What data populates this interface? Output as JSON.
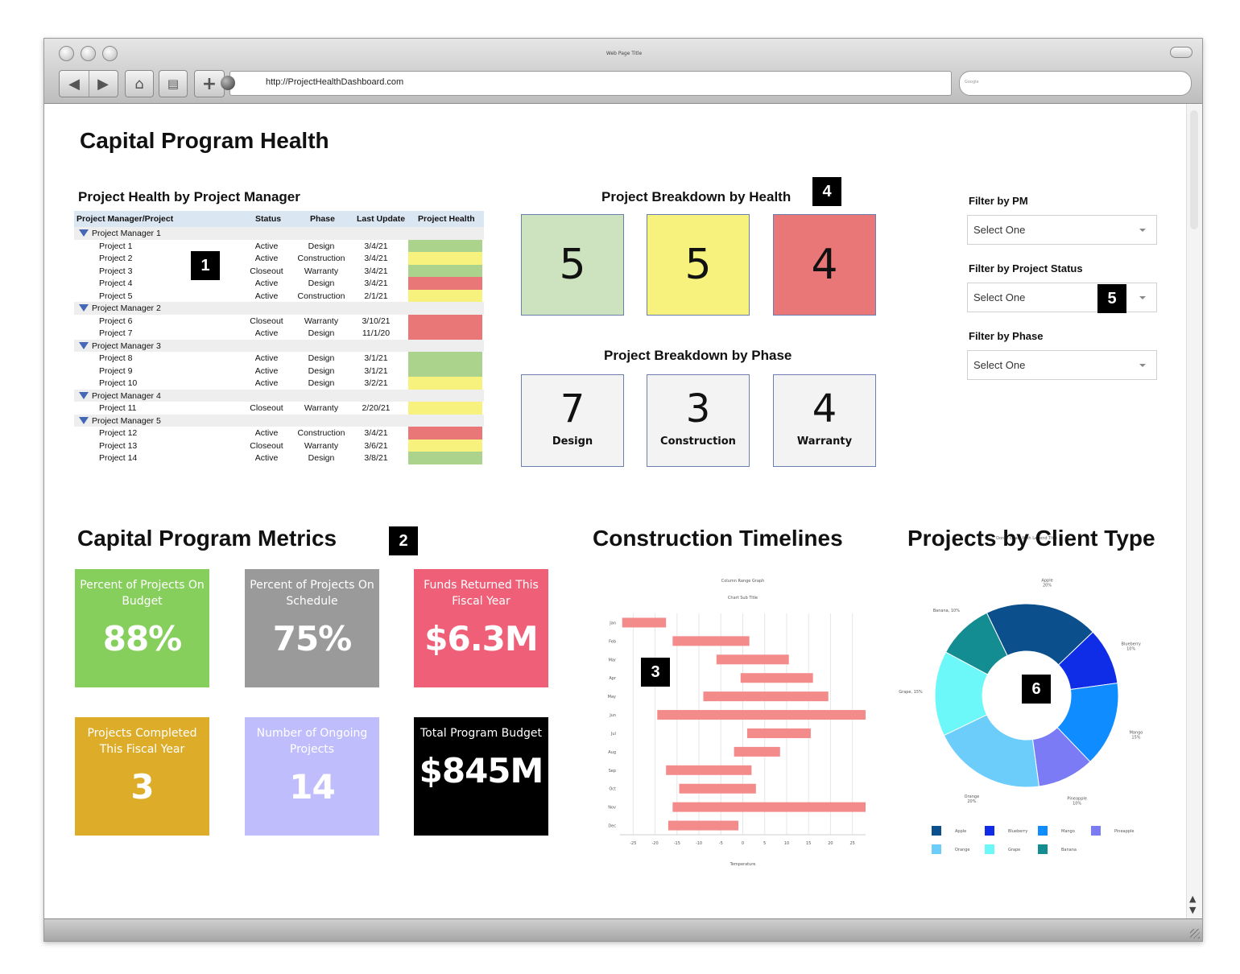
{
  "browser": {
    "window_title": "Web Page Title",
    "url": "http://ProjectHealthDashboard.com",
    "search_placeholder": "Google"
  },
  "page": {
    "title": "Capital Program Health"
  },
  "project_table": {
    "section_title": "Project Health by Project Manager",
    "badge": "1",
    "columns": [
      "Project Manager/Project",
      "Status",
      "Phase",
      "Last Update",
      "Project Health"
    ],
    "health_colors": {
      "green": "#acd38c",
      "yellow": "#f7f27d",
      "red": "#e97777"
    },
    "groups": [
      {
        "manager": "Project Manager 1",
        "projects": [
          {
            "name": "Project 1",
            "status": "Active",
            "phase": "Design",
            "updated": "3/4/21",
            "health": "green"
          },
          {
            "name": "Project 2",
            "status": "Active",
            "phase": "Construction",
            "updated": "3/4/21",
            "health": "yellow"
          },
          {
            "name": "Project 3",
            "status": "Closeout",
            "phase": "Warranty",
            "updated": "3/4/21",
            "health": "green"
          },
          {
            "name": "Project 4",
            "status": "Active",
            "phase": "Design",
            "updated": "3/4/21",
            "health": "red"
          },
          {
            "name": "Project 5",
            "status": "Active",
            "phase": "Construction",
            "updated": "2/1/21",
            "health": "yellow"
          }
        ]
      },
      {
        "manager": "Project Manager 2",
        "projects": [
          {
            "name": "Project 6",
            "status": "Closeout",
            "phase": "Warranty",
            "updated": "3/10/21",
            "health": "red"
          },
          {
            "name": "Project 7",
            "status": "Active",
            "phase": "Design",
            "updated": "11/1/20",
            "health": "red"
          }
        ]
      },
      {
        "manager": "Project Manager 3",
        "projects": [
          {
            "name": "Project 8",
            "status": "Active",
            "phase": "Design",
            "updated": "3/1/21",
            "health": "green"
          },
          {
            "name": "Project 9",
            "status": "Active",
            "phase": "Design",
            "updated": "3/1/21",
            "health": "green"
          },
          {
            "name": "Project 10",
            "status": "Active",
            "phase": "Design",
            "updated": "3/2/21",
            "health": "yellow"
          }
        ]
      },
      {
        "manager": "Project Manager 4",
        "projects": [
          {
            "name": "Project 11",
            "status": "Closeout",
            "phase": "Warranty",
            "updated": "2/20/21",
            "health": "yellow"
          }
        ]
      },
      {
        "manager": "Project Manager 5",
        "projects": [
          {
            "name": "Project 12",
            "status": "Active",
            "phase": "Construction",
            "updated": "3/4/21",
            "health": "red"
          },
          {
            "name": "Project 13",
            "status": "Closeout",
            "phase": "Warranty",
            "updated": "3/6/21",
            "health": "yellow"
          },
          {
            "name": "Project 14",
            "status": "Active",
            "phase": "Design",
            "updated": "3/8/21",
            "health": "green"
          }
        ]
      }
    ]
  },
  "health_breakdown": {
    "title": "Project Breakdown by Health",
    "badge": "4",
    "tiles": [
      {
        "value": "5",
        "color": "#cde3c0"
      },
      {
        "value": "5",
        "color": "#f7f27d"
      },
      {
        "value": "4",
        "color": "#e97777"
      }
    ]
  },
  "phase_breakdown": {
    "title": "Project Breakdown by Phase",
    "tiles": [
      {
        "value": "7",
        "label": "Design"
      },
      {
        "value": "3",
        "label": "Construction"
      },
      {
        "value": "4",
        "label": "Warranty"
      }
    ]
  },
  "filters": {
    "badge": "5",
    "items": [
      {
        "label": "Filter by PM",
        "value": "Select One"
      },
      {
        "label": "Filter by Project Status",
        "value": "Select One"
      },
      {
        "label": "Filter by Phase",
        "value": "Select One"
      }
    ]
  },
  "metrics": {
    "title": "Capital Program Metrics",
    "badge": "2",
    "tiles": [
      {
        "label": "Percent of Projects On Budget",
        "value": "88%",
        "color": "#87cf5c"
      },
      {
        "label": "Percent of Projects On Schedule",
        "value": "75%",
        "color": "#9a9a9a"
      },
      {
        "label": "Funds Returned This Fiscal Year",
        "value": "$6.3M",
        "color": "#ef5f78"
      },
      {
        "label": "Projects Completed This Fiscal Year",
        "value": "3",
        "color": "#ddad2a"
      },
      {
        "label": "Number of Ongoing Projects",
        "value": "14",
        "color": "#bfbdfb"
      },
      {
        "label": "Total Program Budget",
        "value": "$845M",
        "color": "#000000"
      }
    ]
  },
  "timelines": {
    "title": "Construction Timelines",
    "badge": "3",
    "chart_data": {
      "type": "bar",
      "orientation": "horizontal-range",
      "title": "Column Range Graph",
      "subtitle": "Chart Sub Title",
      "xlabel": "Temperature",
      "categories": [
        "Jan",
        "Feb",
        "Mar",
        "Apr",
        "May",
        "Jun",
        "Jul",
        "Aug",
        "Sep",
        "Oct",
        "Nov",
        "Dec"
      ],
      "x_ticks": [
        -25,
        -20,
        -15,
        -10,
        -5,
        0,
        5,
        10,
        15,
        20,
        25
      ],
      "xlim": [
        -28,
        28
      ],
      "ranges": [
        [
          -27.5,
          -17.5
        ],
        [
          -16,
          1.5
        ],
        [
          -6,
          10.5
        ],
        [
          -0.5,
          16
        ],
        [
          -9,
          19.5
        ],
        [
          -19.5,
          28
        ],
        [
          1,
          15.5
        ],
        [
          -2,
          8.5
        ],
        [
          -17.5,
          2
        ],
        [
          -14.5,
          3
        ],
        [
          -16,
          28
        ],
        [
          -17,
          -1
        ]
      ],
      "bar_color": "#f48b8b",
      "grid": true
    }
  },
  "client_type": {
    "title": "Projects by Client Type",
    "badge": "6",
    "chart_data": {
      "type": "pie",
      "variant": "donut",
      "title": "Donut Chart With Legend Title",
      "slices": [
        {
          "label": "Apple",
          "value": 20,
          "pct_label": "20%",
          "color": "#0b4f8d"
        },
        {
          "label": "Blueberry",
          "value": 10,
          "pct_label": "10%",
          "color": "#0f2de6"
        },
        {
          "label": "Mango",
          "value": 15,
          "pct_label": "15%",
          "color": "#0f8cff"
        },
        {
          "label": "Pineapple",
          "value": 10,
          "pct_label": "10%",
          "color": "#7b7cf5"
        },
        {
          "label": "Orange",
          "value": 20,
          "pct_label": "20%",
          "color": "#6ccdfb"
        },
        {
          "label": "Grape",
          "value": 15,
          "pct_label": "15%",
          "color": "#6cf8f8"
        },
        {
          "label": "Banana",
          "value": 10,
          "pct_label": "10%",
          "color": "#138d91"
        }
      ],
      "callouts": [
        "Apple\n20%",
        "Blueberry\n10%",
        "Mango\n15%",
        "Pineapple\n10%",
        "Orange\n20%",
        "Grape, 15%",
        "Banana, 10%"
      ],
      "legend_position": "bottom"
    }
  }
}
